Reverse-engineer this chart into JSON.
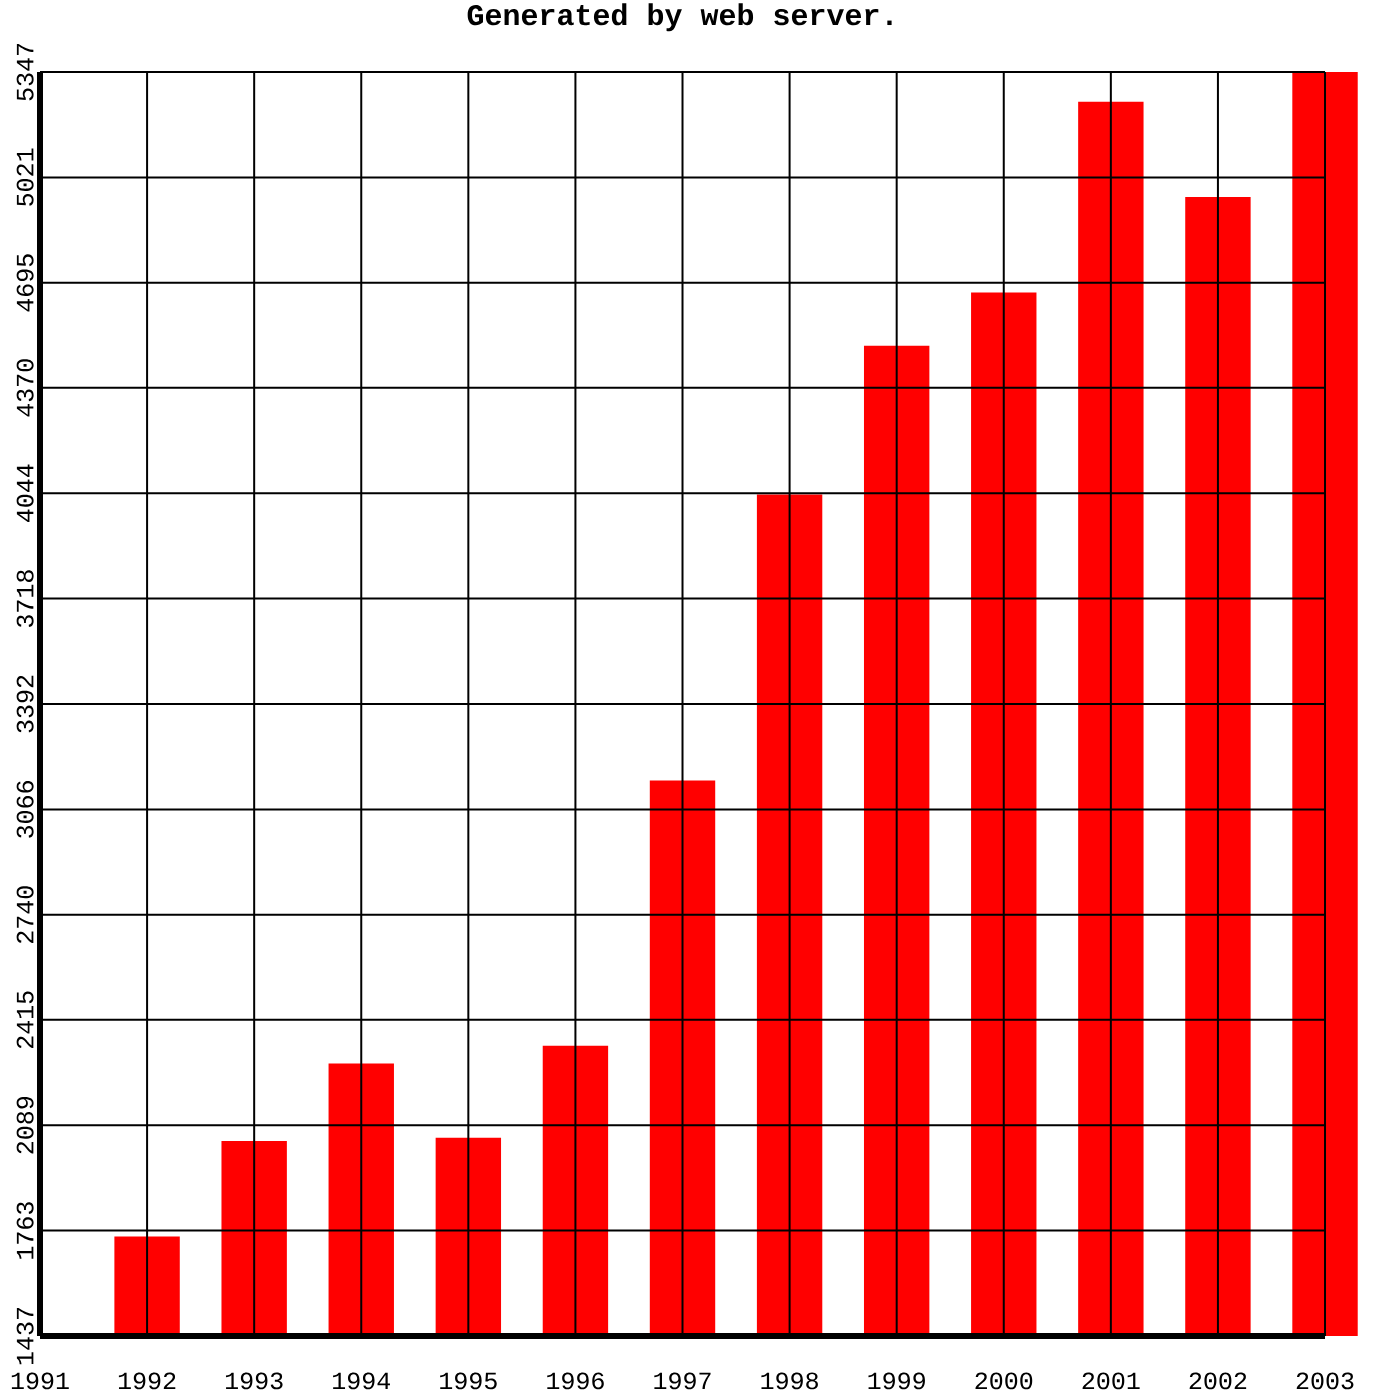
{
  "chart_data": {
    "type": "bar",
    "title": "Generated by web server.",
    "x": [
      1991,
      1992,
      1993,
      1994,
      1995,
      1996,
      1997,
      1998,
      1999,
      2000,
      2001,
      2002,
      2003
    ],
    "values": [
      1437,
      1745,
      2040,
      2280,
      2050,
      2335,
      3155,
      4040,
      4500,
      4665,
      5255,
      4960,
      5347
    ],
    "color": "#ff0000",
    "xlim": [
      1991,
      2003
    ],
    "xticks": [
      1991,
      1992,
      1993,
      1994,
      1995,
      1996,
      1997,
      1998,
      1999,
      2000,
      2001,
      2002,
      2003
    ],
    "ylim": [
      1437,
      5347
    ],
    "yticks": [
      1437,
      1763,
      2089,
      2415,
      2740,
      3066,
      3392,
      3718,
      4044,
      4370,
      4695,
      5021,
      5347
    ],
    "grid": true
  }
}
